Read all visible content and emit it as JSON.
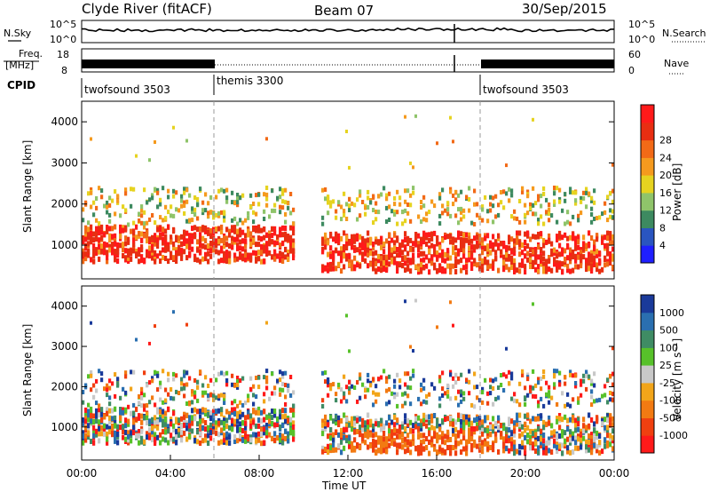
{
  "header": {
    "station": "Clyde River (fitACF)",
    "beam": "Beam 07",
    "date": "30/Sep/2015"
  },
  "labels": {
    "nsky": "N.Sky",
    "nsearch": "N.Search",
    "freq_line1": "Freq.",
    "freq_line2": "[MHz]",
    "nave": "Nave",
    "cpid": "CPID",
    "noise_top": "10^5",
    "noise_bottom": "10^0",
    "freq_top": "18",
    "freq_bottom": "8",
    "nave_top": "60",
    "nave_bottom": "0"
  },
  "colors": {
    "power": [
      "#1f1fff",
      "#2a55c0",
      "#3d8a60",
      "#8fc46a",
      "#e6d320",
      "#f59a1e",
      "#f26a17",
      "#e82e12",
      "#ff1a1a"
    ],
    "velocity": [
      "#1a3a9a",
      "#2a6fb0",
      "#3f8c64",
      "#57c12a",
      "#c8c8c8",
      "#f2a51a",
      "#f27a12",
      "#f04010",
      "#ff1a1a"
    ]
  },
  "chart_data": [
    {
      "type": "table",
      "title": "CPID",
      "x": [
        "00:00",
        "06:00",
        "18:00"
      ],
      "values": [
        "twofsound 3503",
        "themis 3300",
        "twofsound 3503"
      ]
    },
    {
      "type": "heatmap",
      "title": "Power",
      "ylabel": "Slant Range [km]",
      "xlabel": "",
      "xlim": [
        "00:00",
        "24:00"
      ],
      "ylim": [
        180,
        4500
      ],
      "xticks": [
        "00:00",
        "04:00",
        "08:00",
        "12:00",
        "16:00",
        "20:00",
        "00:00"
      ],
      "yticks": [
        1000,
        2000,
        3000,
        4000
      ],
      "colorbar": {
        "label": "Power [dB]",
        "ticks": [
          4,
          8,
          12,
          16,
          20,
          24,
          28
        ]
      },
      "bands": [
        {
          "t_start": 0.0,
          "t_end": 10.5,
          "range_low": 600,
          "range_high": 1400,
          "level": 28
        },
        {
          "t_start": 10.5,
          "t_end": 24.0,
          "range_low": 400,
          "range_high": 1300,
          "level": 28
        },
        {
          "t_start": 0.0,
          "t_end": 10.0,
          "range_low": 1500,
          "range_high": 2400,
          "level": 12
        },
        {
          "t_start": 11.5,
          "t_end": 24.0,
          "range_low": 1600,
          "range_high": 2400,
          "level": 16
        }
      ]
    },
    {
      "type": "heatmap",
      "title": "Velocity",
      "ylabel": "Slant Range [km]",
      "xlabel": "Time UT",
      "xlim": [
        "00:00",
        "24:00"
      ],
      "ylim": [
        180,
        4500
      ],
      "xticks": [
        "00:00",
        "04:00",
        "08:00",
        "12:00",
        "16:00",
        "20:00",
        "00:00"
      ],
      "yticks": [
        1000,
        2000,
        3000,
        4000
      ],
      "colorbar": {
        "label": "Velocity [m s⁻¹]",
        "ticks": [
          "1000",
          "500",
          "100",
          "25",
          "-25",
          "-100",
          "-500",
          "-1000"
        ]
      }
    }
  ]
}
